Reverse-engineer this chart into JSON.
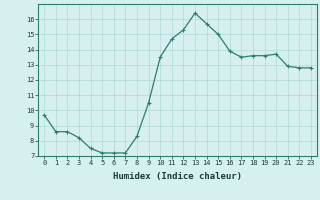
{
  "x": [
    0,
    1,
    2,
    3,
    4,
    5,
    6,
    7,
    8,
    9,
    10,
    11,
    12,
    13,
    14,
    15,
    16,
    17,
    18,
    19,
    20,
    21,
    22,
    23
  ],
  "y": [
    9.7,
    8.6,
    8.6,
    8.2,
    7.5,
    7.2,
    7.2,
    7.2,
    8.3,
    10.5,
    13.5,
    14.7,
    15.3,
    16.4,
    15.7,
    15.0,
    13.9,
    13.5,
    13.6,
    13.6,
    13.7,
    12.9,
    12.8,
    12.8
  ],
  "line_color": "#2e7d6e",
  "marker": "+",
  "marker_size": 3.5,
  "marker_linewidth": 0.8,
  "line_width": 0.9,
  "bg_color": "#d6f0f0",
  "grid_color": "#b0d8d8",
  "xlabel": "Humidex (Indice chaleur)",
  "xlabel_fontsize": 6.5,
  "tick_fontsize": 5.0,
  "ylim": [
    7,
    17
  ],
  "xlim": [
    -0.5,
    23.5
  ],
  "yticks": [
    7,
    8,
    9,
    10,
    11,
    12,
    13,
    14,
    15,
    16
  ],
  "xticks": [
    0,
    1,
    2,
    3,
    4,
    5,
    6,
    7,
    8,
    9,
    10,
    11,
    12,
    13,
    14,
    15,
    16,
    17,
    18,
    19,
    20,
    21,
    22,
    23
  ]
}
